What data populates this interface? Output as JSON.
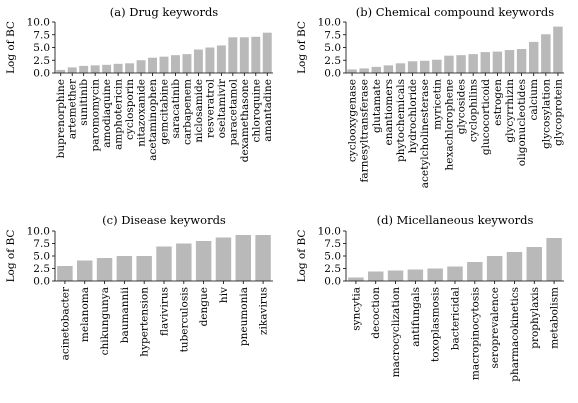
{
  "chart_data": [
    {
      "type": "bar",
      "title": "(a) Drug keywords",
      "ylabel": "Log of BC",
      "ylim": [
        0,
        10
      ],
      "yticks": [
        "0.0",
        "2.5",
        "5.0",
        "7.5",
        "10.0"
      ],
      "categories": [
        "buprenorphine",
        "artemether",
        "sunitinib",
        "paromomycin",
        "amodiaquine",
        "amphotericin",
        "cyclosporin",
        "nitazoxanide",
        "acetaminophen",
        "gemcitabine",
        "saracatinib",
        "carbapenem",
        "niclosamide",
        "resveratrol",
        "oseltamivir",
        "paracetamol",
        "dexamethasone",
        "chloroquine",
        "amantadine"
      ],
      "values": [
        0.6,
        1.1,
        1.4,
        1.5,
        1.6,
        1.8,
        1.9,
        2.5,
        3.0,
        3.2,
        3.5,
        3.7,
        4.6,
        5.0,
        5.4,
        7.0,
        7.0,
        7.1,
        7.9
      ]
    },
    {
      "type": "bar",
      "title": "(b) Chemical compound keywords",
      "ylabel": "Log of BC",
      "ylim": [
        0,
        10
      ],
      "yticks": [
        "0.0",
        "2.5",
        "5.0",
        "7.5",
        "10.0"
      ],
      "categories": [
        "cyclooxygenase",
        "farnesyltransferase",
        "glutamate",
        "enantiomers",
        "phytochemicals",
        "hydrochloride",
        "acetylcholinesterase",
        "myricetin",
        "hexachlorophene",
        "glycosides",
        "cyclophilins",
        "glucocorticoid",
        "estrogen",
        "glycyrrhizin",
        "oligonucleotides",
        "calcium",
        "glycosylation",
        "glycoprotein"
      ],
      "values": [
        0.7,
        0.9,
        1.2,
        1.5,
        1.9,
        2.3,
        2.4,
        2.6,
        3.4,
        3.5,
        3.7,
        4.1,
        4.2,
        4.5,
        4.7,
        6.1,
        7.6,
        9.1
      ]
    },
    {
      "type": "bar",
      "title": "(c) Disease keywords",
      "ylabel": "Log of BC",
      "ylim": [
        0,
        10
      ],
      "yticks": [
        "0.0",
        "2.5",
        "5.0",
        "7.5",
        "10.0"
      ],
      "categories": [
        "acinetobacter",
        "melanoma",
        "chikungunya",
        "baumannii",
        "hypertension",
        "flavivirus",
        "tuberculosis",
        "dengue",
        "hiv",
        "pneumonia",
        "zikavirus"
      ],
      "values": [
        3.0,
        4.1,
        4.6,
        5.0,
        5.0,
        6.9,
        7.5,
        8.0,
        8.7,
        9.2,
        9.2
      ]
    },
    {
      "type": "bar",
      "title": "(d) Micellaneous keywords",
      "ylabel": "Log of BC",
      "ylim": [
        0,
        10
      ],
      "yticks": [
        "0.0",
        "2.5",
        "5.0",
        "7.5",
        "10.0"
      ],
      "categories": [
        "syncytia",
        "decoction",
        "macrocyclization",
        "antifungals",
        "toxoplasmosis",
        "bactericidal",
        "macropinocytosis",
        "seroprevalence",
        "pharmacokinetics",
        "prophylaxis",
        "metabolism"
      ],
      "values": [
        0.7,
        1.9,
        2.1,
        2.3,
        2.5,
        2.9,
        3.8,
        5.0,
        5.8,
        6.8,
        8.6
      ]
    }
  ]
}
